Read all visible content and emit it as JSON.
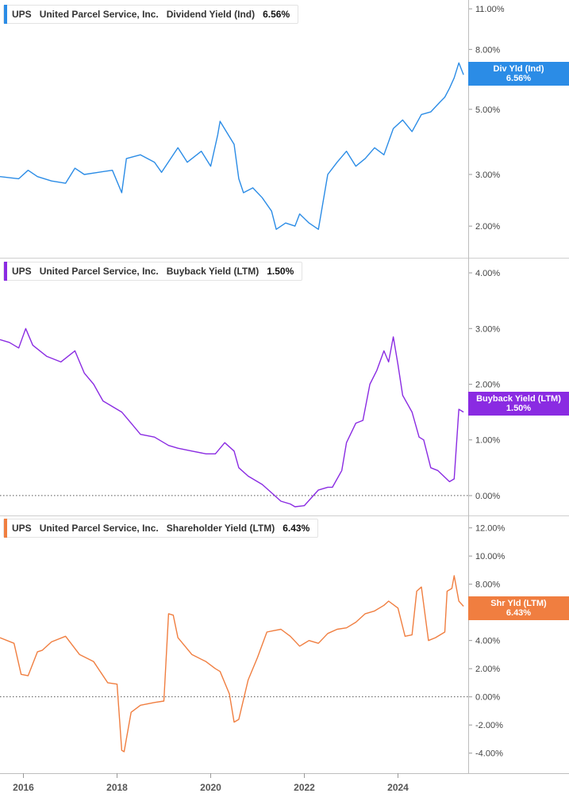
{
  "colors": {
    "dividend": "#2B8CE6",
    "buyback": "#8A2BE2",
    "shareholder": "#F07E40",
    "grid": "#d6d6d6",
    "text": "#444444"
  },
  "x_ticks": [
    "2016",
    "2018",
    "2020",
    "2022",
    "2024"
  ],
  "panels": [
    {
      "ticker": "UPS",
      "company": "United Parcel Service, Inc.",
      "metric": "Dividend Yield (Ind)",
      "value": "6.56%",
      "badge": {
        "line1": "Div Yld (Ind)",
        "line2": "6.56%"
      }
    },
    {
      "ticker": "UPS",
      "company": "United Parcel Service, Inc.",
      "metric": "Buyback Yield (LTM)",
      "value": "1.50%",
      "badge": {
        "line1": "Buyback Yield (LTM)",
        "line2": "1.50%"
      }
    },
    {
      "ticker": "UPS",
      "company": "United Parcel Service, Inc.",
      "metric": "Shareholder Yield (LTM)",
      "value": "6.43%",
      "badge": {
        "line1": "Shr Yld (LTM)",
        "line2": "6.43%"
      }
    }
  ],
  "chart_data": [
    {
      "type": "line",
      "scale": "log",
      "title": "UPS United Parcel Service, Inc. Dividend Yield (Ind) 6.56%",
      "y_ticks": [
        2,
        3,
        5,
        8,
        11
      ],
      "y_tick_labels": [
        "2.00%",
        "3.00%",
        "5.00%",
        "8.00%",
        "11.00%"
      ],
      "ylim": [
        1.6,
        11.5
      ],
      "xlim": [
        2015.5,
        2025.5
      ],
      "grid": true,
      "series": [
        {
          "name": "Dividend Yield (Ind)",
          "color": "#2B8CE6",
          "x": [
            2015.5,
            2015.9,
            2016.1,
            2016.3,
            2016.6,
            2016.9,
            2017.1,
            2017.3,
            2017.6,
            2017.9,
            2018.1,
            2018.2,
            2018.5,
            2018.8,
            2018.95,
            2019.3,
            2019.5,
            2019.8,
            2020.0,
            2020.15,
            2020.2,
            2020.5,
            2020.6,
            2020.7,
            2020.9,
            2021.1,
            2021.3,
            2021.4,
            2021.6,
            2021.8,
            2021.9,
            2022.1,
            2022.3,
            2022.5,
            2022.7,
            2022.9,
            2023.1,
            2023.3,
            2023.5,
            2023.7,
            2023.9,
            2024.1,
            2024.3,
            2024.5,
            2024.7,
            2024.9,
            2025.0,
            2025.1,
            2025.2,
            2025.3,
            2025.4
          ],
          "y": [
            2.95,
            2.9,
            3.1,
            2.95,
            2.85,
            2.8,
            3.15,
            3.0,
            3.05,
            3.1,
            2.6,
            3.4,
            3.5,
            3.3,
            3.05,
            3.7,
            3.3,
            3.6,
            3.2,
            4.1,
            4.55,
            3.8,
            2.9,
            2.6,
            2.7,
            2.5,
            2.25,
            1.95,
            2.05,
            2.0,
            2.2,
            2.05,
            1.95,
            3.0,
            3.3,
            3.6,
            3.2,
            3.4,
            3.7,
            3.5,
            4.3,
            4.6,
            4.2,
            4.8,
            4.9,
            5.3,
            5.5,
            5.9,
            6.4,
            7.2,
            6.56
          ]
        }
      ]
    },
    {
      "type": "line",
      "title": "UPS United Parcel Service, Inc. Buyback Yield (LTM) 1.50%",
      "y_ticks": [
        0,
        1,
        2,
        3,
        4
      ],
      "y_tick_labels": [
        "0.00%",
        "1.00%",
        "2.00%",
        "3.00%",
        "4.00%"
      ],
      "ylim": [
        -0.3,
        4.2
      ],
      "xlim": [
        2015.5,
        2025.5
      ],
      "grid": true,
      "zero_line": true,
      "series": [
        {
          "name": "Buyback Yield (LTM)",
          "color": "#8A2BE2",
          "x": [
            2015.5,
            2015.7,
            2015.9,
            2016.05,
            2016.2,
            2016.5,
            2016.8,
            2017.1,
            2017.3,
            2017.5,
            2017.7,
            2017.9,
            2018.1,
            2018.3,
            2018.5,
            2018.8,
            2019.1,
            2019.3,
            2019.6,
            2019.9,
            2020.1,
            2020.3,
            2020.5,
            2020.6,
            2020.8,
            2021.1,
            2021.3,
            2021.5,
            2021.7,
            2021.8,
            2022.0,
            2022.3,
            2022.5,
            2022.6,
            2022.8,
            2022.9,
            2023.1,
            2023.25,
            2023.4,
            2023.55,
            2023.7,
            2023.8,
            2023.9,
            2024.0,
            2024.1,
            2024.3,
            2024.45,
            2024.55,
            2024.7,
            2024.85,
            2025.1,
            2025.2,
            2025.3,
            2025.4
          ],
          "y": [
            2.8,
            2.75,
            2.65,
            3.0,
            2.7,
            2.5,
            2.4,
            2.6,
            2.2,
            2.0,
            1.7,
            1.6,
            1.5,
            1.3,
            1.1,
            1.05,
            0.9,
            0.85,
            0.8,
            0.75,
            0.75,
            0.95,
            0.8,
            0.5,
            0.35,
            0.2,
            0.05,
            -0.1,
            -0.15,
            -0.2,
            -0.18,
            0.1,
            0.15,
            0.15,
            0.45,
            0.95,
            1.3,
            1.35,
            2.0,
            2.25,
            2.6,
            2.4,
            2.85,
            2.35,
            1.8,
            1.5,
            1.05,
            1.0,
            0.5,
            0.45,
            0.25,
            0.3,
            1.55,
            1.5
          ]
        }
      ]
    },
    {
      "type": "line",
      "title": "UPS United Parcel Service, Inc. Shareholder Yield (LTM) 6.43%",
      "y_ticks": [
        -4,
        -2,
        0,
        2,
        4,
        6,
        8,
        10,
        12
      ],
      "y_tick_labels": [
        "-4.00%",
        "-2.00%",
        "0.00%",
        "2.00%",
        "4.00%",
        "6.00%",
        "8.00%",
        "10.00%",
        "12.00%"
      ],
      "ylim": [
        -5.2,
        12.6
      ],
      "xlim": [
        2015.5,
        2025.5
      ],
      "grid": true,
      "zero_line": true,
      "series": [
        {
          "name": "Shareholder Yield (LTM)",
          "color": "#F07E40",
          "x": [
            2015.5,
            2015.8,
            2015.95,
            2016.1,
            2016.3,
            2016.4,
            2016.6,
            2016.9,
            2017.2,
            2017.5,
            2017.8,
            2018.0,
            2018.1,
            2018.15,
            2018.3,
            2018.5,
            2018.8,
            2019.0,
            2019.1,
            2019.2,
            2019.3,
            2019.6,
            2019.9,
            2020.1,
            2020.2,
            2020.4,
            2020.5,
            2020.6,
            2020.8,
            2021.0,
            2021.2,
            2021.35,
            2021.5,
            2021.7,
            2021.9,
            2022.1,
            2022.3,
            2022.5,
            2022.7,
            2022.9,
            2023.1,
            2023.3,
            2023.5,
            2023.7,
            2023.8,
            2024.0,
            2024.15,
            2024.3,
            2024.4,
            2024.5,
            2024.65,
            2024.8,
            2025.0,
            2025.05,
            2025.15,
            2025.2,
            2025.3,
            2025.4
          ],
          "y": [
            4.2,
            3.8,
            1.6,
            1.5,
            3.2,
            3.3,
            3.9,
            4.3,
            3.0,
            2.5,
            1.0,
            0.9,
            -3.8,
            -3.9,
            -1.1,
            -0.6,
            -0.4,
            -0.3,
            5.9,
            5.8,
            4.2,
            3.0,
            2.5,
            2.0,
            1.8,
            0.2,
            -1.8,
            -1.6,
            1.2,
            2.8,
            4.6,
            4.7,
            4.8,
            4.3,
            3.6,
            4.0,
            3.8,
            4.5,
            4.8,
            4.9,
            5.3,
            5.9,
            6.1,
            6.5,
            6.8,
            6.3,
            4.3,
            4.4,
            7.5,
            7.8,
            4.0,
            4.2,
            4.6,
            7.5,
            7.7,
            8.6,
            6.8,
            6.43
          ]
        }
      ]
    }
  ]
}
